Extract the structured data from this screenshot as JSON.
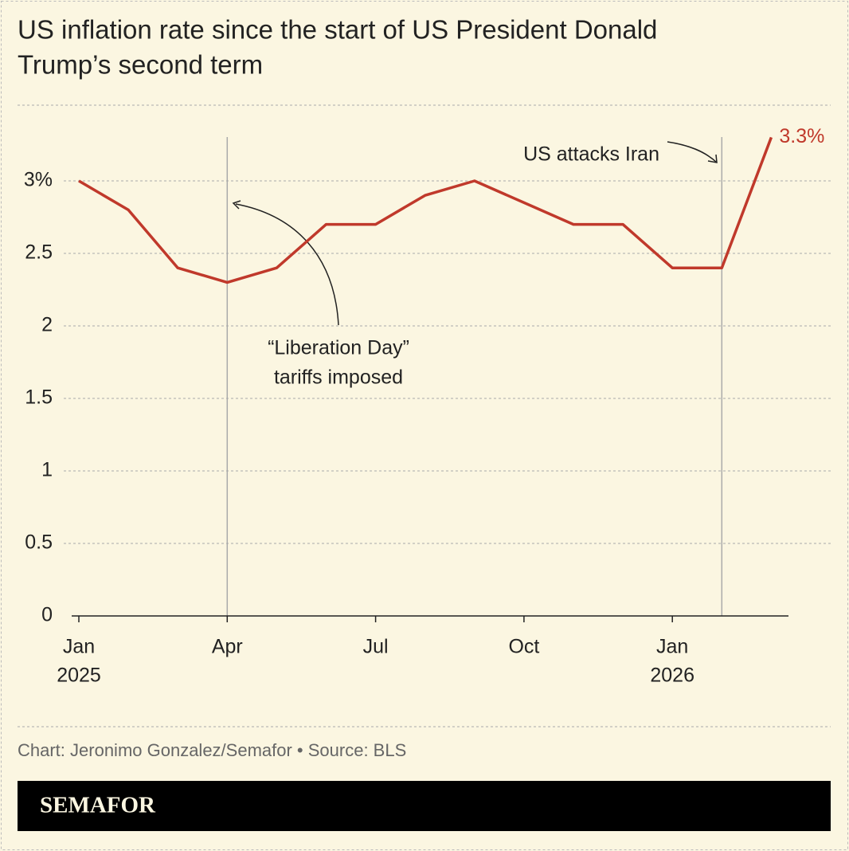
{
  "chart_data": {
    "type": "line",
    "title": [
      "US inflation rate since the start of US President Donald",
      "Trump’s second term"
    ],
    "x": [
      "2025-01",
      "2025-02",
      "2025-03",
      "2025-04",
      "2025-05",
      "2025-06",
      "2025-07",
      "2025-08",
      "2025-09",
      "2025-11",
      "2025-12",
      "2026-01",
      "2026-02",
      "2026-03"
    ],
    "series": [
      {
        "color": "#c0392b",
        "values": [
          3.0,
          2.8,
          2.4,
          2.3,
          2.4,
          2.7,
          2.7,
          2.9,
          3.0,
          2.7,
          2.7,
          2.4,
          2.4,
          3.3
        ],
        "value_labels": [
          null,
          null,
          null,
          null,
          null,
          null,
          null,
          null,
          null,
          null,
          null,
          null,
          null,
          "3.3%"
        ]
      }
    ],
    "xticks": [
      {
        "value": "2025-01",
        "label": [
          "Jan",
          "2025"
        ]
      },
      {
        "value": "2025-04",
        "label": [
          "Apr"
        ]
      },
      {
        "value": "2025-07",
        "label": [
          "Jul"
        ]
      },
      {
        "value": "2025-10",
        "label": [
          "Oct"
        ]
      },
      {
        "value": "2026-01",
        "label": [
          "Jan",
          "2026"
        ]
      }
    ],
    "ylim": [
      0,
      3.3
    ],
    "yticks": [
      0,
      0.5,
      1,
      1.5,
      2,
      2.5,
      {
        "value": 3,
        "label": "3%"
      }
    ],
    "grid": true,
    "annotations": [
      {
        "x": "2025-04",
        "text": [
          "“Liberation Day”",
          "tariffs imposed"
        ]
      },
      {
        "x": "2026-02",
        "text": [
          "US attacks Iran"
        ]
      }
    ],
    "source": "Chart: Jeronimo Gonzalez/Semafor • Source: BLS",
    "brand": "SEMAFOR"
  }
}
